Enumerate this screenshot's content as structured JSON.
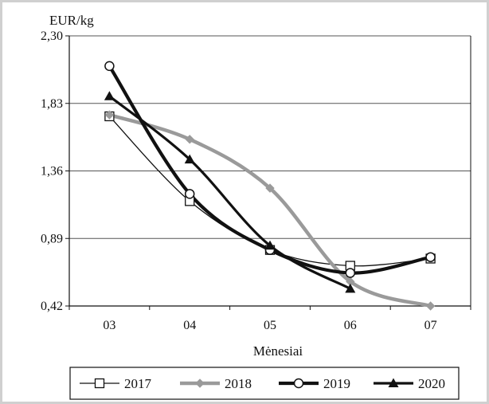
{
  "chart_data": {
    "type": "line",
    "ylabel": "EUR/kg",
    "xlabel": "Mėnesiai",
    "categories": [
      "03",
      "04",
      "05",
      "06",
      "07"
    ],
    "ylim": [
      0.42,
      2.3
    ],
    "yticks": [
      "2,30",
      "1,83",
      "1,36",
      "0,89",
      "0,42"
    ],
    "grid": "horizontal",
    "legend_position": "bottom",
    "series": [
      {
        "name": "2017",
        "values": [
          1.74,
          1.15,
          0.81,
          0.7,
          0.75
        ],
        "color": "#111111",
        "marker": "open-square"
      },
      {
        "name": "2018",
        "values": [
          1.75,
          1.58,
          1.24,
          0.59,
          0.42
        ],
        "color": "#9a9a9a",
        "marker": "diamond"
      },
      {
        "name": "2019",
        "values": [
          2.09,
          1.2,
          0.81,
          0.65,
          0.76
        ],
        "color": "#111111",
        "marker": "open-circle"
      },
      {
        "name": "2020",
        "values": [
          1.88,
          1.44,
          0.84,
          0.54,
          null
        ],
        "color": "#111111",
        "marker": "filled-triangle"
      }
    ]
  }
}
